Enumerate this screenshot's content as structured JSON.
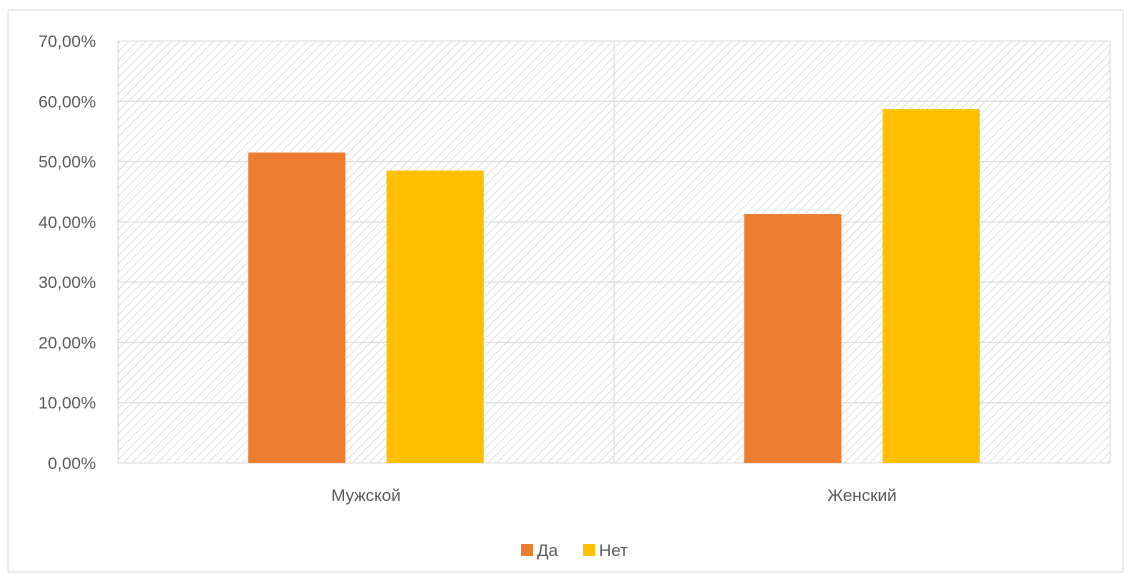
{
  "chart_data": {
    "type": "bar",
    "categories": [
      "Мужской",
      "Женский"
    ],
    "series": [
      {
        "name": "Да",
        "values": [
          51.5,
          41.3
        ],
        "color": "#ED7D31"
      },
      {
        "name": "Нет",
        "values": [
          48.5,
          58.7
        ],
        "color": "#FFC000"
      }
    ],
    "y_ticks": [
      "0,00%",
      "10,00%",
      "20,00%",
      "30,00%",
      "40,00%",
      "50,00%",
      "60,00%",
      "70,00%"
    ],
    "ylim": [
      0,
      70
    ],
    "grid": true,
    "legend_position": "bottom",
    "plot_background": "hatched-gray"
  }
}
